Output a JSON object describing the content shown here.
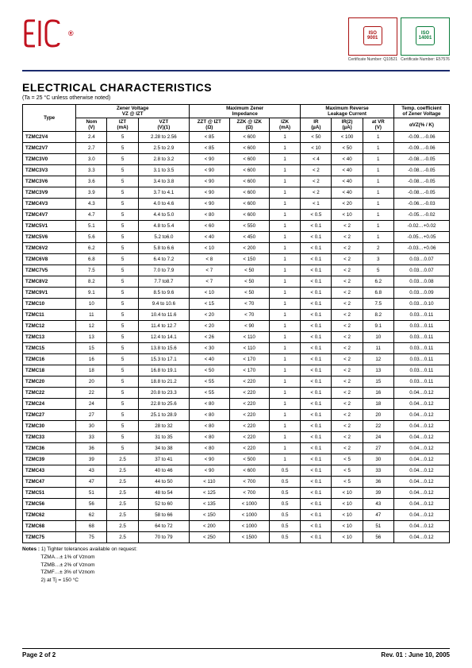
{
  "header": {
    "logo_text": "EIC",
    "logo_color": "#c1121f",
    "cert1_label": "ISO 9001",
    "cert2_label": "ISO 14001",
    "cert1_note": "Certificate Number: Q10521",
    "cert2_note": "Certificate Number: E57576"
  },
  "title": "ELECTRICAL CHARACTERISTICS",
  "condition": "(Ta = 25 °C unless otherwise noted)",
  "columns": {
    "grp_type": "Type",
    "grp_zener_v": "Zener Voltage\nVZ @ IZT",
    "grp_max_imp": "Maximum Zener\nImpedance",
    "grp_max_rev": "Maximum Reverse\nLeakage Current",
    "grp_tempco": "Temp. coefficient\nof Zener Voltage",
    "nom_v": "Nom\n(V)",
    "izt_ma": "IZT\n(mA)",
    "vzt_v": "VZT\n(V)(1)",
    "zzt": "ZZT @ IZT\n(Ω)",
    "zzk": "ZZK @ IZK\n(Ω)",
    "izk_ma": "IZK\n(mA)",
    "ir_ua": "IR\n(µA)",
    "ir2_ua": "IR(2)\n(µA)",
    "at_vr": "at VR\n(V)",
    "alpha": "αVZ(% / K)"
  },
  "rows": [
    {
      "t": "TZMC2V4",
      "nom": "2.4",
      "izt": "5",
      "vzt": "2.28 to 2.56",
      "zzt": "< 85",
      "zzk": "< 600",
      "izk": "1",
      "ir": "< 50",
      "ir2": "< 100",
      "vr": "1",
      "a": "-0.09…-0.06"
    },
    {
      "t": "TZMC2V7",
      "nom": "2.7",
      "izt": "5",
      "vzt": "2.5 to 2.9",
      "zzt": "< 85",
      "zzk": "< 600",
      "izk": "1",
      "ir": "< 10",
      "ir2": "< 50",
      "vr": "1",
      "a": "-0.09…-0.06"
    },
    {
      "t": "TZMC3V0",
      "nom": "3.0",
      "izt": "5",
      "vzt": "2.8 to 3.2",
      "zzt": "< 90",
      "zzk": "< 600",
      "izk": "1",
      "ir": "< 4",
      "ir2": "< 40",
      "vr": "1",
      "a": "-0.08…-0.05"
    },
    {
      "t": "TZMC3V3",
      "nom": "3.3",
      "izt": "5",
      "vzt": "3.1 to 3.5",
      "zzt": "< 90",
      "zzk": "< 600",
      "izk": "1",
      "ir": "< 2",
      "ir2": "< 40",
      "vr": "1",
      "a": "-0.08…-0.05"
    },
    {
      "t": "TZMC3V6",
      "nom": "3.6",
      "izt": "5",
      "vzt": "3.4 to 3.8",
      "zzt": "< 90",
      "zzk": "< 600",
      "izk": "1",
      "ir": "< 2",
      "ir2": "< 40",
      "vr": "1",
      "a": "-0.08…-0.05"
    },
    {
      "t": "TZMC3V9",
      "nom": "3.9",
      "izt": "5",
      "vzt": "3.7 to 4.1",
      "zzt": "< 90",
      "zzk": "< 600",
      "izk": "1",
      "ir": "< 2",
      "ir2": "< 40",
      "vr": "1",
      "a": "-0.08…-0.05"
    },
    {
      "t": "TZMC4V3",
      "nom": "4.3",
      "izt": "5",
      "vzt": "4.0 to 4.6",
      "zzt": "< 90",
      "zzk": "< 600",
      "izk": "1",
      "ir": "< 1",
      "ir2": "< 20",
      "vr": "1",
      "a": "-0.06…-0.03"
    },
    {
      "t": "TZMC4V7",
      "nom": "4.7",
      "izt": "5",
      "vzt": "4.4 to 5.0",
      "zzt": "< 80",
      "zzk": "< 600",
      "izk": "1",
      "ir": "< 0.5",
      "ir2": "< 10",
      "vr": "1",
      "a": "-0.05…-0.02"
    },
    {
      "t": "TZMC5V1",
      "nom": "5.1",
      "izt": "5",
      "vzt": "4.8 to 5.4",
      "zzt": "< 60",
      "zzk": "< 550",
      "izk": "1",
      "ir": "< 0.1",
      "ir2": "< 2",
      "vr": "1",
      "a": "-0.02…+0.02"
    },
    {
      "t": "TZMC5V6",
      "nom": "5.6",
      "izt": "5",
      "vzt": "5.2 to6.0",
      "zzt": "< 40",
      "zzk": "< 450",
      "izk": "1",
      "ir": "< 0.1",
      "ir2": "< 2",
      "vr": "1",
      "a": "-0.05…+0.05"
    },
    {
      "t": "TZMC6V2",
      "nom": "6.2",
      "izt": "5",
      "vzt": "5.8 to 6.6",
      "zzt": "< 10",
      "zzk": "< 200",
      "izk": "1",
      "ir": "< 0.1",
      "ir2": "< 2",
      "vr": "2",
      "a": "-0.03…+0.06"
    },
    {
      "t": "TZMC6V8",
      "nom": "6.8",
      "izt": "5",
      "vzt": "6.4 to 7.2",
      "zzt": "< 8",
      "zzk": "< 150",
      "izk": "1",
      "ir": "< 0.1",
      "ir2": "< 2",
      "vr": "3",
      "a": "0.03…0.07"
    },
    {
      "t": "TZMC7V5",
      "nom": "7.5",
      "izt": "5",
      "vzt": "7.0 to 7.9",
      "zzt": "< 7",
      "zzk": "< 50",
      "izk": "1",
      "ir": "< 0.1",
      "ir2": "< 2",
      "vr": "5",
      "a": "0.03…0.07"
    },
    {
      "t": "TZMC8V2",
      "nom": "8.2",
      "izt": "5",
      "vzt": "7.7 to8.7",
      "zzt": "< 7",
      "zzk": "< 50",
      "izk": "1",
      "ir": "< 0.1",
      "ir2": "< 2",
      "vr": "6.2",
      "a": "0.03…0.08"
    },
    {
      "t": "TZMC9V1",
      "nom": "9.1",
      "izt": "5",
      "vzt": "8.5 to 9.6",
      "zzt": "< 10",
      "zzk": "< 50",
      "izk": "1",
      "ir": "< 0.1",
      "ir2": "< 2",
      "vr": "6.8",
      "a": "0.03…0.09"
    },
    {
      "t": "TZMC10",
      "nom": "10",
      "izt": "5",
      "vzt": "9.4 to 10.6",
      "zzt": "< 15",
      "zzk": "< 70",
      "izk": "1",
      "ir": "< 0.1",
      "ir2": "< 2",
      "vr": "7.5",
      "a": "0.03…0.10"
    },
    {
      "t": "TZMC11",
      "nom": "11",
      "izt": "5",
      "vzt": "10.4 to 11.6",
      "zzt": "< 20",
      "zzk": "< 70",
      "izk": "1",
      "ir": "< 0.1",
      "ir2": "< 2",
      "vr": "8.2",
      "a": "0.03…0.11"
    },
    {
      "t": "TZMC12",
      "nom": "12",
      "izt": "5",
      "vzt": "11.4 to 12.7",
      "zzt": "< 20",
      "zzk": "< 90",
      "izk": "1",
      "ir": "< 0.1",
      "ir2": "< 2",
      "vr": "9.1",
      "a": "0.03…0.11"
    },
    {
      "t": "TZMC13",
      "nom": "13",
      "izt": "5",
      "vzt": "12.4 to 14.1",
      "zzt": "< 26",
      "zzk": "< 110",
      "izk": "1",
      "ir": "< 0.1",
      "ir2": "< 2",
      "vr": "10",
      "a": "0.03…0.11"
    },
    {
      "t": "TZMC15",
      "nom": "15",
      "izt": "5",
      "vzt": "13.8 to 15.6",
      "zzt": "< 30",
      "zzk": "< 110",
      "izk": "1",
      "ir": "< 0.1",
      "ir2": "< 2",
      "vr": "11",
      "a": "0.03…0.11"
    },
    {
      "t": "TZMC16",
      "nom": "16",
      "izt": "5",
      "vzt": "15.3 to 17.1",
      "zzt": "< 40",
      "zzk": "< 170",
      "izk": "1",
      "ir": "< 0.1",
      "ir2": "< 2",
      "vr": "12",
      "a": "0.03…0.11"
    },
    {
      "t": "TZMC18",
      "nom": "18",
      "izt": "5",
      "vzt": "16.8 to 19.1",
      "zzt": "< 50",
      "zzk": "< 170",
      "izk": "1",
      "ir": "< 0.1",
      "ir2": "< 2",
      "vr": "13",
      "a": "0.03…0.11"
    },
    {
      "t": "TZMC20",
      "nom": "20",
      "izt": "5",
      "vzt": "18.8 to 21.2",
      "zzt": "< 55",
      "zzk": "< 220",
      "izk": "1",
      "ir": "< 0.1",
      "ir2": "< 2",
      "vr": "15",
      "a": "0.03…0.11"
    },
    {
      "t": "TZMC22",
      "nom": "22",
      "izt": "5",
      "vzt": "20.8 to 23.3",
      "zzt": "< 55",
      "zzk": "< 220",
      "izk": "1",
      "ir": "< 0.1",
      "ir2": "< 2",
      "vr": "16",
      "a": "0.04…0.12"
    },
    {
      "t": "TZMC24",
      "nom": "24",
      "izt": "5",
      "vzt": "22.8 to 25.6",
      "zzt": "< 80",
      "zzk": "< 220",
      "izk": "1",
      "ir": "< 0.1",
      "ir2": "< 2",
      "vr": "18",
      "a": "0.04…0.12"
    },
    {
      "t": "TZMC27",
      "nom": "27",
      "izt": "5",
      "vzt": "25.1 to 28.9",
      "zzt": "< 80",
      "zzk": "< 220",
      "izk": "1",
      "ir": "< 0.1",
      "ir2": "< 2",
      "vr": "20",
      "a": "0.04…0.12"
    },
    {
      "t": "TZMC30",
      "nom": "30",
      "izt": "5",
      "vzt": "28 to 32",
      "zzt": "< 80",
      "zzk": "< 220",
      "izk": "1",
      "ir": "< 0.1",
      "ir2": "< 2",
      "vr": "22",
      "a": "0.04…0.12"
    },
    {
      "t": "TZMC33",
      "nom": "33",
      "izt": "5",
      "vzt": "31 to 35",
      "zzt": "< 80",
      "zzk": "< 220",
      "izk": "1",
      "ir": "< 0.1",
      "ir2": "< 2",
      "vr": "24",
      "a": "0.04…0.12"
    },
    {
      "t": "TZMC36",
      "nom": "36",
      "izt": "5",
      "vzt": "34 to 38",
      "zzt": "< 80",
      "zzk": "< 220",
      "izk": "1",
      "ir": "< 0.1",
      "ir2": "< 2",
      "vr": "27",
      "a": "0.04…0.12"
    },
    {
      "t": "TZMC39",
      "nom": "39",
      "izt": "2.5",
      "vzt": "37 to 41",
      "zzt": "< 90",
      "zzk": "< 500",
      "izk": "1",
      "ir": "< 0.1",
      "ir2": "< 5",
      "vr": "30",
      "a": "0.04…0.12"
    },
    {
      "t": "TZMC43",
      "nom": "43",
      "izt": "2.5",
      "vzt": "40 to 46",
      "zzt": "< 90",
      "zzk": "< 600",
      "izk": "0.5",
      "ir": "< 0.1",
      "ir2": "< 5",
      "vr": "33",
      "a": "0.04…0.12"
    },
    {
      "t": "TZMC47",
      "nom": "47",
      "izt": "2.5",
      "vzt": "44 to 50",
      "zzt": "< 110",
      "zzk": "< 700",
      "izk": "0.5",
      "ir": "< 0.1",
      "ir2": "< 5",
      "vr": "36",
      "a": "0.04…0.12"
    },
    {
      "t": "TZMC51",
      "nom": "51",
      "izt": "2.5",
      "vzt": "48 to 54",
      "zzt": "< 125",
      "zzk": "< 700",
      "izk": "0.5",
      "ir": "< 0.1",
      "ir2": "< 10",
      "vr": "39",
      "a": "0.04…0.12"
    },
    {
      "t": "TZMC56",
      "nom": "56",
      "izt": "2.5",
      "vzt": "52 to 60",
      "zzt": "< 135",
      "zzk": "< 1000",
      "izk": "0.5",
      "ir": "< 0.1",
      "ir2": "< 10",
      "vr": "43",
      "a": "0.04…0.12"
    },
    {
      "t": "TZMC62",
      "nom": "62",
      "izt": "2.5",
      "vzt": "58 to 66",
      "zzt": "< 150",
      "zzk": "< 1000",
      "izk": "0.5",
      "ir": "< 0.1",
      "ir2": "< 10",
      "vr": "47",
      "a": "0.04…0.12"
    },
    {
      "t": "TZMC68",
      "nom": "68",
      "izt": "2.5",
      "vzt": "64 to 72",
      "zzt": "< 200",
      "zzk": "< 1000",
      "izk": "0.5",
      "ir": "< 0.1",
      "ir2": "< 10",
      "vr": "51",
      "a": "0.04…0.12"
    },
    {
      "t": "TZMC75",
      "nom": "75",
      "izt": "2.5",
      "vzt": "70 to 79",
      "zzt": "< 250",
      "zzk": "< 1500",
      "izk": "0.5",
      "ir": "< 0.1",
      "ir2": "< 10",
      "vr": "56",
      "a": "0.04…0.12"
    }
  ],
  "notes": {
    "lead": "Notes :",
    "n1": "1) Tighter tolerances available on request:",
    "l1": "TZMA…± 1% of Vznom",
    "l2": "TZMB…± 2% of Vznom",
    "l3": "TZMF…± 3% of Vznom",
    "n2": "2) at Tj = 150 °C"
  },
  "footer": {
    "left": "Page 2 of 2",
    "right": "Rev. 01 : June 10, 2005"
  },
  "style": {
    "rule_color": "#1a2a6c",
    "text_color": "#000000",
    "bg": "#ffffff"
  }
}
